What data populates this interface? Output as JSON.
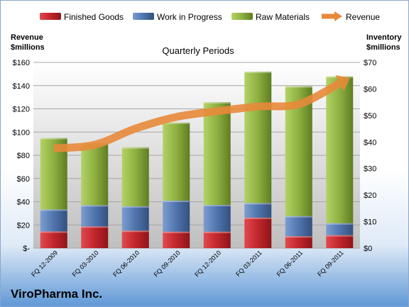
{
  "chart_data": {
    "type": "bar",
    "stacked": true,
    "title": "Quarterly Periods",
    "company": "ViroPharma Inc.",
    "left_axis": {
      "label_line1": "Revenue",
      "label_line2": "$millions",
      "ylim": [
        0,
        160
      ],
      "ticks": [
        "$-",
        "$20",
        "$40",
        "$60",
        "$80",
        "$100",
        "$120",
        "$140",
        "$160"
      ]
    },
    "right_axis": {
      "label_line1": "Inventory",
      "label_line2": "$millions",
      "ylim": [
        0,
        70
      ],
      "ticks": [
        "$0",
        "$10",
        "$20",
        "$30",
        "$40",
        "$50",
        "$60",
        "$70"
      ]
    },
    "categories": [
      "FQ 12-2009",
      "FQ 03-2010",
      "FQ 06-2010",
      "FQ 09-2010",
      "FQ 12-2010",
      "FQ 03-2011",
      "FQ 06-2011",
      "FQ 09-2011"
    ],
    "legend_position": "top",
    "grid": true,
    "series": [
      {
        "name": "Finished Goods",
        "axis": "right",
        "color": "#c0262c",
        "values": [
          6.3,
          8.2,
          6.6,
          6.2,
          6.2,
          11.5,
          4.5,
          4.9
        ]
      },
      {
        "name": "Work in Progress",
        "axis": "right",
        "color": "#4f74ad",
        "values": [
          8.3,
          8.0,
          9.2,
          11.7,
          10.1,
          5.5,
          7.6,
          4.5
        ]
      },
      {
        "name": "Raw Materials",
        "axis": "right",
        "color": "#8db040",
        "values": [
          26.9,
          23.3,
          22.2,
          29.4,
          38.7,
          49.5,
          48.9,
          55.3
        ]
      },
      {
        "name": "Revenue",
        "axis": "left",
        "type": "line",
        "color": "#e8893a",
        "values": [
          86,
          89,
          103,
          113,
          118,
          122,
          124,
          142
        ]
      }
    ]
  }
}
